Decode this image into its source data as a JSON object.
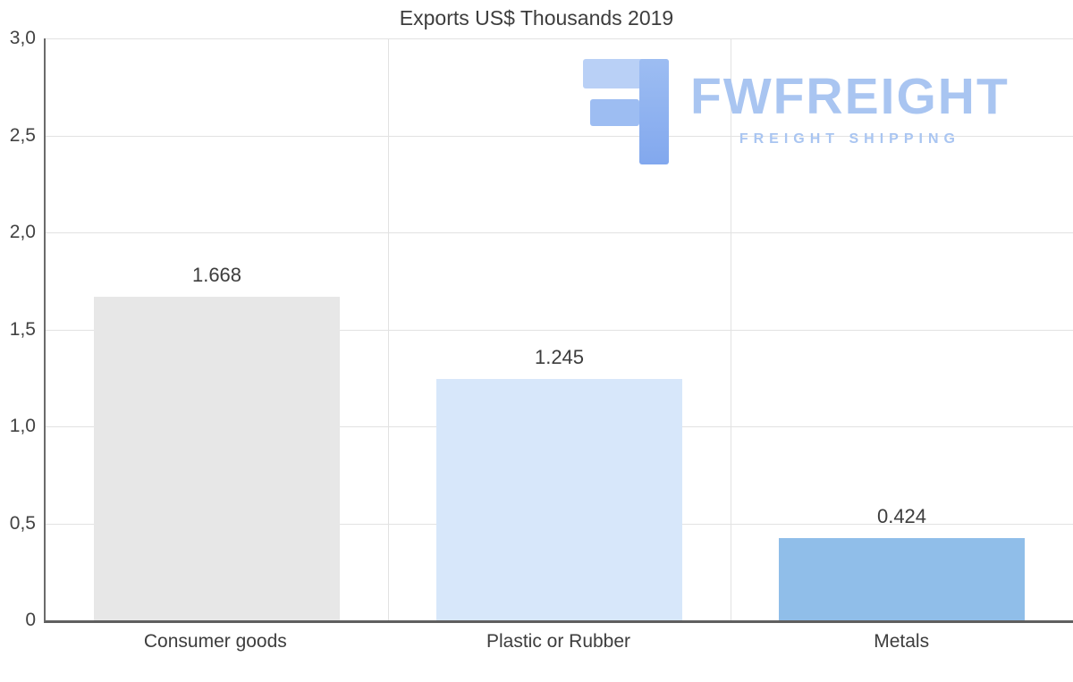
{
  "chart": {
    "title": "Exports US$ Thousands 2019"
  },
  "logo": {
    "name": "FWFREIGHT",
    "tagline": "FREIGHT SHIPPING",
    "text_color": "#a9c5f1",
    "icon_color_light": "#b9d0f6",
    "icon_color_mid": "#9dbdf2",
    "icon_color_dark": "#82a8ee"
  },
  "chart_data": {
    "type": "bar",
    "title": "Exports US$ Thousands 2019",
    "categories": [
      "Consumer goods",
      "Plastic or Rubber",
      "Metals"
    ],
    "values": [
      1.668,
      1.245,
      0.424
    ],
    "value_labels": [
      "1.668",
      "1.245",
      "0.424"
    ],
    "bar_colors": [
      "#e7e7e7",
      "#d7e7fa",
      "#90bee9"
    ],
    "xlabel": "",
    "ylabel": "",
    "ylim": [
      0,
      3
    ],
    "yticks": [
      0,
      0.5,
      1.0,
      1.5,
      2.0,
      2.5,
      3.0
    ],
    "ytick_labels": [
      "0",
      "0,5",
      "1,0",
      "1,5",
      "2,0",
      "2,5",
      "3,0"
    ],
    "grid": true,
    "legend": "none"
  }
}
